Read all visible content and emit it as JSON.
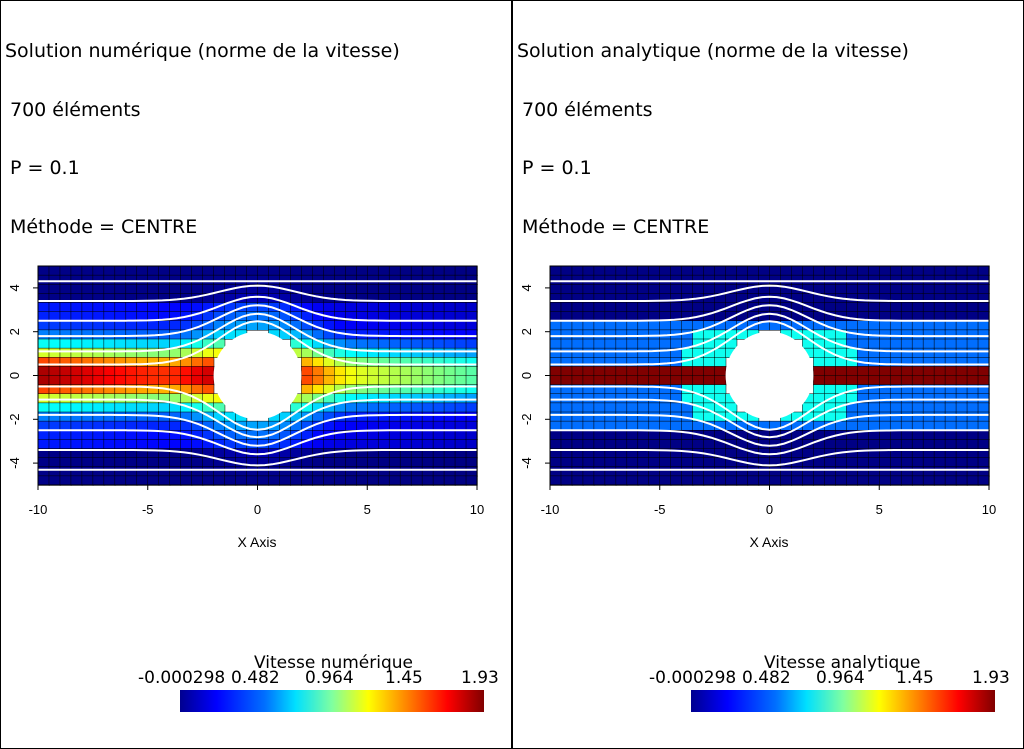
{
  "panels": [
    {
      "id": "left",
      "title": "Solution numérique (norme de la vitesse)",
      "elements": "700 éléments",
      "param": "P = 0.1",
      "method": "Méthode = CENTRE",
      "x_axis_title": "X Axis",
      "x_ticks": [
        "-10",
        "-5",
        "0",
        "5",
        "10"
      ],
      "y_ticks": [
        "4",
        "2",
        "0",
        "-2",
        "-4"
      ],
      "colorbar_title": "Vitesse numérique",
      "colorbar_labels": [
        "-0.000298",
        "0.482",
        "0.964",
        "1.45",
        "1.93"
      ]
    },
    {
      "id": "right",
      "title": "Solution analytique (norme de la vitesse)",
      "elements": "700 éléments",
      "param": "P = 0.1",
      "method": "Méthode = CENTRE",
      "x_axis_title": "X Axis",
      "x_ticks": [
        "-10",
        "-5",
        "0",
        "5",
        "10"
      ],
      "y_ticks": [
        "4",
        "2",
        "0",
        "-2",
        "-4"
      ],
      "colorbar_title": "Vitesse analytique",
      "colorbar_labels": [
        "-0.000298",
        "0.482",
        "0.964",
        "1.45",
        "1.93"
      ]
    }
  ],
  "chart_data": [
    {
      "type": "heatmap",
      "title": "Solution numérique (norme de la vitesse)",
      "xlabel": "X Axis",
      "xlim": [
        -10,
        10
      ],
      "ylim": [
        -5,
        5
      ],
      "colorbar": "jet",
      "value_range": [
        -0.000298,
        1.93
      ],
      "obstacle": {
        "shape": "circle",
        "center": [
          0,
          0
        ],
        "radius": 2
      },
      "field_notes": "velocity magnitude; highest (~1.9) along centreline inlet x≈-10, decreasing to ~0.9 near x=10; low (~0) near top/bottom walls",
      "max_value_location": [
        -10,
        0
      ]
    },
    {
      "type": "heatmap",
      "title": "Solution analytique (norme de la vitesse)",
      "xlabel": "X Axis",
      "xlim": [
        -10,
        10
      ],
      "ylim": [
        -5,
        5
      ],
      "colorbar": "jet",
      "value_range": [
        -0.000298,
        1.93
      ],
      "obstacle": {
        "shape": "circle",
        "center": [
          0,
          0
        ],
        "radius": 2
      },
      "field_notes": "velocity magnitude; maximum (~1.93) in band |y|<0.5 on both sides of cylinder; ~0 elsewhere",
      "max_value_location": [
        -10,
        0
      ]
    }
  ]
}
